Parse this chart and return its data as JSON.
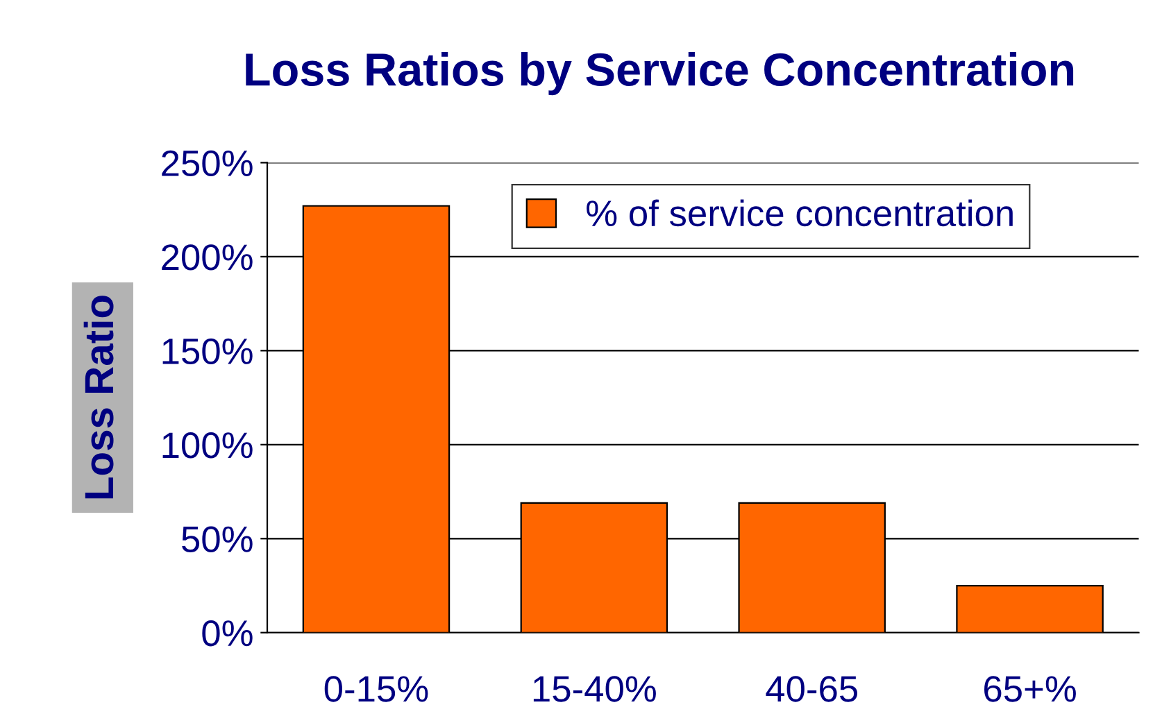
{
  "chart_data": {
    "type": "bar",
    "title": "Loss Ratios by Service Concentration",
    "ylabel": "Loss Ratio",
    "categories": [
      "0-15%",
      "15-40%",
      "40-65",
      "65+%"
    ],
    "series": [
      {
        "name": "% of service concentration",
        "color": "#ff6600",
        "values": [
          227,
          69,
          69,
          25
        ]
      }
    ],
    "ylim": [
      0,
      250
    ],
    "yticks": [
      {
        "value": 0,
        "label": "0%"
      },
      {
        "value": 50,
        "label": "50%"
      },
      {
        "value": 100,
        "label": "100%"
      },
      {
        "value": 150,
        "label": "150%"
      },
      {
        "value": 200,
        "label": "200%"
      },
      {
        "value": 250,
        "label": "250%"
      }
    ],
    "grid": "y",
    "legend": "top right"
  }
}
